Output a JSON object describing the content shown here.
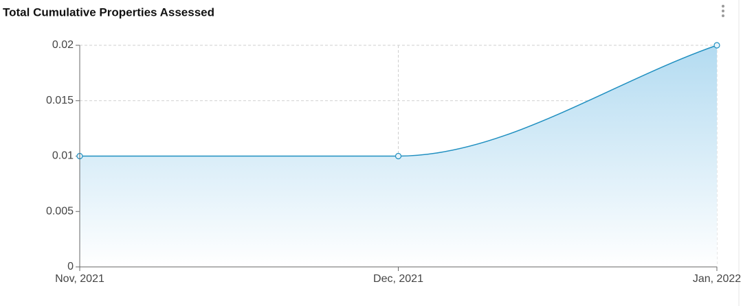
{
  "chart_data": {
    "type": "area",
    "title": "Total Cumulative Properties Assessed",
    "categories": [
      "Nov, 2021",
      "Dec, 2021",
      "Jan, 2022"
    ],
    "values": [
      0.01,
      0.01,
      0.02
    ],
    "color": "#1f8fc0",
    "ylim": [
      0,
      0.02
    ],
    "yticks": [
      0,
      0.005,
      0.01,
      0.015,
      0.02
    ],
    "grid": true
  }
}
